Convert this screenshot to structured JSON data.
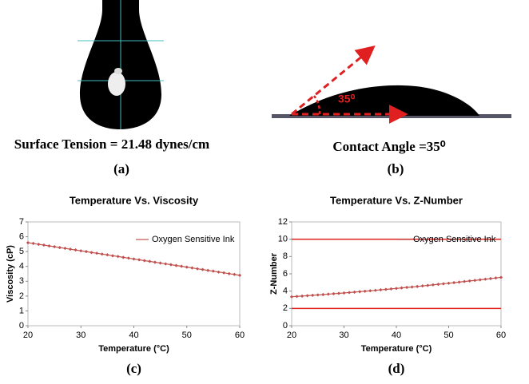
{
  "panels": [
    {
      "caption": "Surface Tension = 21.48 dynes/cm",
      "label": "(a)"
    },
    {
      "caption": "Contact Angle =35⁰",
      "label": "(b)",
      "annotation": "35⁰"
    }
  ],
  "chart_data": [
    {
      "type": "line",
      "title": "Temperature Vs. Viscosity",
      "x_label": "Temperature (°C)",
      "y_label": "Viscosity (cP)",
      "panel_label": "(c)",
      "x": [
        20,
        21,
        22,
        23,
        24,
        25,
        26,
        27,
        28,
        29,
        30,
        31,
        32,
        33,
        34,
        35,
        36,
        37,
        38,
        39,
        40,
        41,
        42,
        43,
        44,
        45,
        46,
        47,
        48,
        49,
        50,
        51,
        52,
        53,
        54,
        55,
        56,
        57,
        58,
        59,
        60
      ],
      "series": [
        {
          "name": "Oxygen Sensitive Ink",
          "color": "#c0504d",
          "values": [
            5.6,
            5.55,
            5.49,
            5.44,
            5.38,
            5.33,
            5.27,
            5.22,
            5.16,
            5.11,
            5.05,
            5.0,
            4.94,
            4.89,
            4.83,
            4.78,
            4.72,
            4.67,
            4.61,
            4.56,
            4.5,
            4.45,
            4.39,
            4.34,
            4.28,
            4.23,
            4.17,
            4.12,
            4.06,
            4.01,
            3.95,
            3.9,
            3.84,
            3.79,
            3.73,
            3.68,
            3.62,
            3.57,
            3.51,
            3.46,
            3.4
          ]
        }
      ],
      "xlim": [
        20,
        60
      ],
      "xticks": [
        20,
        30,
        40,
        50,
        60
      ],
      "ylim": [
        0,
        7
      ],
      "yticks": [
        0,
        1,
        2,
        3,
        4,
        5,
        6,
        7
      ],
      "legend": "upper right",
      "grid": false
    },
    {
      "type": "line",
      "title": "Temperature Vs. Z-Number",
      "x_label": "Temperature (°C)",
      "y_label": "Z-Number",
      "panel_label": "(d)",
      "x": [
        20,
        21,
        22,
        23,
        24,
        25,
        26,
        27,
        28,
        29,
        30,
        31,
        32,
        33,
        34,
        35,
        36,
        37,
        38,
        39,
        40,
        41,
        42,
        43,
        44,
        45,
        46,
        47,
        48,
        49,
        50,
        51,
        52,
        53,
        54,
        55,
        56,
        57,
        58,
        59,
        60
      ],
      "series": [
        {
          "name": "Oxygen Sensitive Ink",
          "color": "#c0504d",
          "values": [
            3.35,
            3.39,
            3.43,
            3.47,
            3.52,
            3.56,
            3.6,
            3.65,
            3.7,
            3.74,
            3.79,
            3.84,
            3.89,
            3.94,
            3.99,
            4.04,
            4.09,
            4.15,
            4.2,
            4.26,
            4.31,
            4.37,
            4.43,
            4.48,
            4.54,
            4.6,
            4.66,
            4.73,
            4.79,
            4.85,
            4.91,
            4.98,
            5.04,
            5.11,
            5.18,
            5.24,
            5.31,
            5.38,
            5.45,
            5.52,
            5.59
          ]
        }
      ],
      "reference_lines": [
        10,
        2
      ],
      "reference_color": "#e0201a",
      "xlim": [
        20,
        60
      ],
      "xticks": [
        20,
        30,
        40,
        50,
        60
      ],
      "ylim": [
        0,
        12
      ],
      "yticks": [
        0,
        2,
        4,
        6,
        8,
        10,
        12
      ],
      "legend": "upper right",
      "grid": false
    }
  ]
}
